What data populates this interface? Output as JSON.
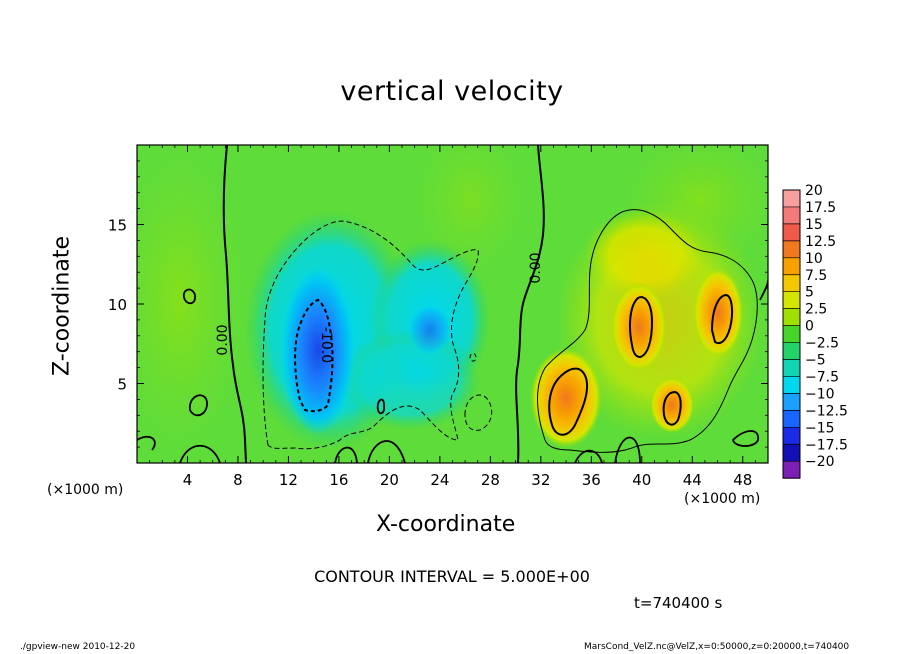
{
  "chart_data": {
    "type": "heatmap",
    "title": "vertical velocity",
    "xlabel": "X-coordinate",
    "ylabel": "Z-coordinate",
    "x_unit_left": "(×1000 m)",
    "x_unit_right": "(×1000 m)",
    "xlim": [
      0,
      50
    ],
    "ylim": [
      0,
      20
    ],
    "x_ticks": [
      "4",
      "8",
      "12",
      "16",
      "20",
      "24",
      "28",
      "32",
      "36",
      "40",
      "44",
      "48"
    ],
    "x_tick_values": [
      4,
      8,
      12,
      16,
      20,
      24,
      28,
      32,
      36,
      40,
      44,
      48
    ],
    "y_ticks": [
      "5",
      "10",
      "15"
    ],
    "y_tick_values": [
      5,
      10,
      15
    ],
    "colorbar": {
      "labels": [
        "20",
        "17.5",
        "15",
        "12.5",
        "10",
        "7.5",
        "5",
        "2.5",
        "0",
        "−2.5",
        "−5",
        "−7.5",
        "−10",
        "−12.5",
        "−15",
        "−17.5",
        "−20"
      ],
      "colors": [
        "#f8a0a0",
        "#f37a7a",
        "#f05a4a",
        "#f0781e",
        "#f8a000",
        "#f4c800",
        "#d4e600",
        "#a0e000",
        "#46d428",
        "#24d26a",
        "#10d4b4",
        "#00d8f0",
        "#1aa0ff",
        "#1a64ff",
        "#1a2ae6",
        "#1010b4",
        "#7a20b4"
      ]
    },
    "contour_labels": [
      "0.00",
      "0.00",
      "-10.0"
    ],
    "contour_interval": "CONTOUR INTERVAL = 5.000E+00",
    "time": "t=740400 s"
  },
  "footer": {
    "left": "./gpview-new  2010-12-20",
    "right": "MarsCond_VelZ.nc@VelZ,x=0:50000,z=0:20000,t=740400"
  }
}
